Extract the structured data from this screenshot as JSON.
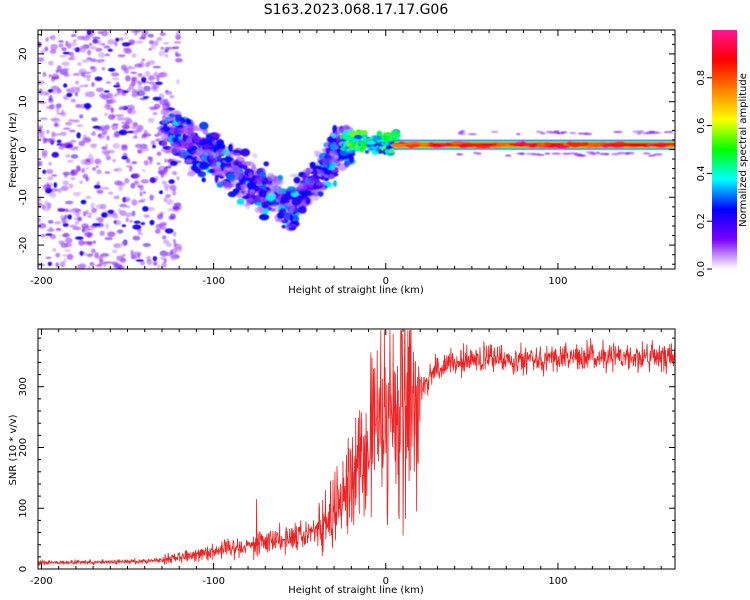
{
  "title": "S163.2023.068.17.17.G06",
  "chart_data": [
    {
      "type": "heatmap",
      "name": "spectrogram",
      "xlabel": "Height of straight line (km)",
      "ylabel": "Frequency (Hz)",
      "xlim": [
        -202,
        168
      ],
      "ylim": [
        -25,
        25
      ],
      "xticks": [
        -200,
        -100,
        0,
        100
      ],
      "yticks": [
        -20,
        -10,
        0,
        10,
        20
      ],
      "colorbar": {
        "label": "Normalized spectral amplitude",
        "range": [
          0,
          1
        ],
        "ticks": [
          0.0,
          0.2,
          0.4,
          0.6,
          0.8
        ],
        "colormap": [
          "#ffffff",
          "#7a00ff",
          "#0000ff",
          "#00ffff",
          "#00ff00",
          "#ffff00",
          "#ff7f00",
          "#ff0000",
          "#ff1493"
        ]
      },
      "features": [
        {
          "description": "scattered noise",
          "x_range": [
            -202,
            -130
          ],
          "freq_range": [
            -25,
            25
          ],
          "amplitude": 0.15
        },
        {
          "description": "diffuse tail to negative frequency",
          "x_range": [
            -130,
            -20
          ],
          "freq_from": 5,
          "freq_to": -12,
          "amplitude": 0.35
        },
        {
          "description": "steady carrier",
          "x_range": [
            5,
            168
          ],
          "freq": 1,
          "amplitude": 0.9
        }
      ]
    },
    {
      "type": "line",
      "name": "snr",
      "xlabel": "Height of straight line (km)",
      "ylabel": "SNR (10 * v/v)",
      "xlim": [
        -202,
        168
      ],
      "ylim": [
        0,
        395
      ],
      "xticks": [
        -200,
        -100,
        0,
        100
      ],
      "yticks": [
        0,
        100,
        200,
        300
      ],
      "color": "#ee2222",
      "trend": [
        {
          "x": -202,
          "y": 10
        },
        {
          "x": -150,
          "y": 12
        },
        {
          "x": -130,
          "y": 15
        },
        {
          "x": -100,
          "y": 30
        },
        {
          "x": -70,
          "y": 45
        },
        {
          "x": -45,
          "y": 60
        },
        {
          "x": -35,
          "y": 70
        },
        {
          "x": -20,
          "y": 120
        },
        {
          "x": -10,
          "y": 180
        },
        {
          "x": 0,
          "y": 230
        },
        {
          "x": 10,
          "y": 270
        },
        {
          "x": 20,
          "y": 300
        },
        {
          "x": 30,
          "y": 330
        },
        {
          "x": 50,
          "y": 345
        },
        {
          "x": 100,
          "y": 348
        },
        {
          "x": 168,
          "y": 350
        }
      ],
      "spikes": [
        {
          "x": -75,
          "y": 115
        },
        {
          "x": -35,
          "y": 130
        },
        {
          "x": -5,
          "y": 360
        },
        {
          "x": 10,
          "y": 55
        },
        {
          "x": 17,
          "y": 340
        }
      ]
    }
  ]
}
